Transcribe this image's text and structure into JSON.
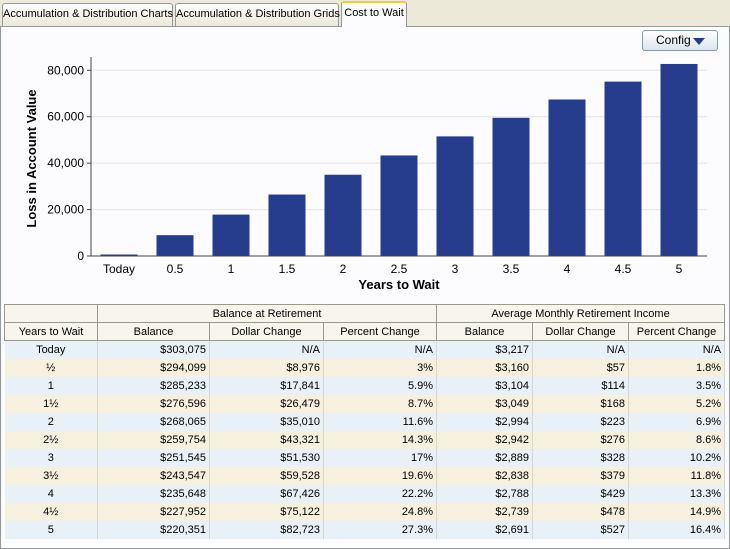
{
  "tabs": [
    {
      "label": "Accumulation & Distribution Charts",
      "active": false
    },
    {
      "label": "Accumulation & Distribution Grids",
      "active": false
    },
    {
      "label": "Cost to Wait",
      "active": true
    }
  ],
  "toolbar": {
    "config_label": "Config"
  },
  "chart_data": {
    "type": "bar",
    "xlabel": "Years to Wait",
    "ylabel": "Loss in Account Value",
    "categories": [
      "Today",
      "0.5",
      "1",
      "1.5",
      "2",
      "2.5",
      "3",
      "3.5",
      "4",
      "4.5",
      "5"
    ],
    "values": [
      0,
      8976,
      17841,
      26479,
      35010,
      43321,
      51530,
      59528,
      67426,
      75122,
      82723
    ],
    "ylim": [
      0,
      84000
    ],
    "yticks": [
      0,
      20000,
      40000,
      60000,
      80000
    ],
    "ytick_labels": [
      "0",
      "20,000",
      "40,000",
      "60,000",
      "80,000"
    ],
    "bar_color": "#253d8c",
    "grid": true
  },
  "table": {
    "group_headers": {
      "left": "",
      "balance": "Balance at Retirement",
      "income": "Average Monthly Retirement Income"
    },
    "columns": [
      "Years to Wait",
      "Balance",
      "Dollar Change",
      "Percent Change",
      "Balance",
      "Dollar Change",
      "Percent Change"
    ],
    "rows": [
      [
        "Today",
        "$303,075",
        "N/A",
        "N/A",
        "$3,217",
        "N/A",
        "N/A"
      ],
      [
        "½",
        "$294,099",
        "$8,976",
        "3%",
        "$3,160",
        "$57",
        "1.8%"
      ],
      [
        "1",
        "$285,233",
        "$17,841",
        "5.9%",
        "$3,104",
        "$114",
        "3.5%"
      ],
      [
        "1½",
        "$276,596",
        "$26,479",
        "8.7%",
        "$3,049",
        "$168",
        "5.2%"
      ],
      [
        "2",
        "$268,065",
        "$35,010",
        "11.6%",
        "$2,994",
        "$223",
        "6.9%"
      ],
      [
        "2½",
        "$259,754",
        "$43,321",
        "14.3%",
        "$2,942",
        "$276",
        "8.6%"
      ],
      [
        "3",
        "$251,545",
        "$51,530",
        "17%",
        "$2,889",
        "$328",
        "10.2%"
      ],
      [
        "3½",
        "$243,547",
        "$59,528",
        "19.6%",
        "$2,838",
        "$379",
        "11.8%"
      ],
      [
        "4",
        "$235,648",
        "$67,426",
        "22.2%",
        "$2,788",
        "$429",
        "13.3%"
      ],
      [
        "4½",
        "$227,952",
        "$75,122",
        "24.8%",
        "$2,739",
        "$478",
        "14.9%"
      ],
      [
        "5",
        "$220,351",
        "$82,723",
        "27.3%",
        "$2,691",
        "$527",
        "16.4%"
      ]
    ]
  }
}
